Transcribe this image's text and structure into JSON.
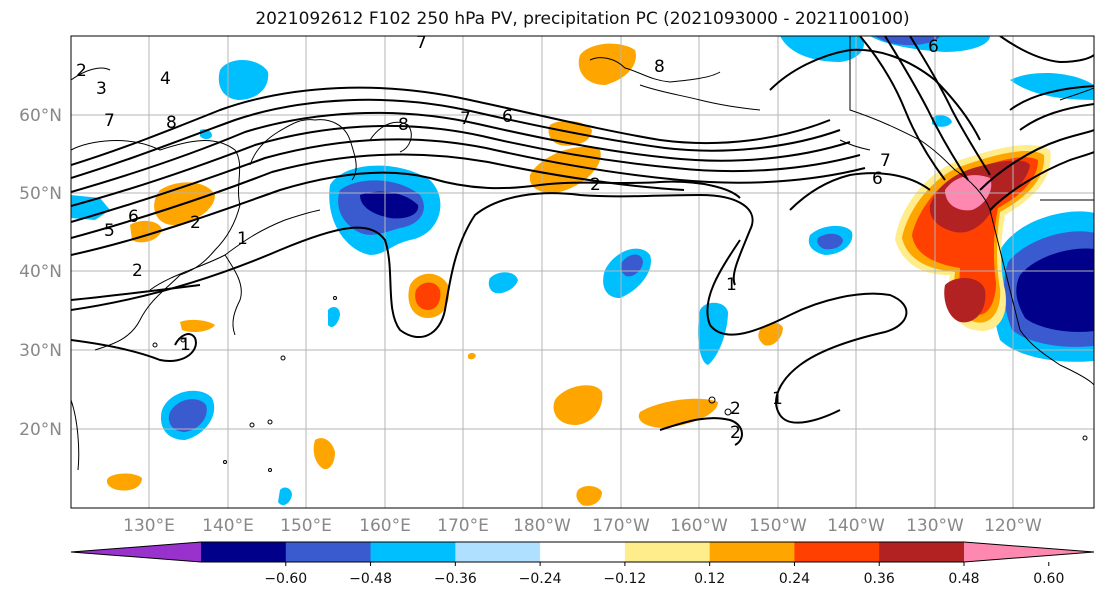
{
  "title": "2021092612 F102 250 hPa PV, precipitation PC (2021093000 - 2021100100)",
  "map": {
    "lat_ticks": [
      "60°N",
      "50°N",
      "40°N",
      "30°N",
      "20°N"
    ],
    "lon_ticks": [
      "130°E",
      "140°E",
      "150°E",
      "160°E",
      "170°E",
      "180°W",
      "170°W",
      "160°W",
      "150°W",
      "140°W",
      "130°W",
      "120°W"
    ]
  },
  "contour_labels": [
    "2",
    "3",
    "4",
    "7",
    "8",
    "6",
    "5",
    "2",
    "7",
    "8",
    "6",
    "2",
    "7",
    "6",
    "1",
    "1",
    "2",
    "2",
    "6",
    "7",
    "1",
    "1",
    "2",
    "8"
  ],
  "colorbar": {
    "tick_labels": [
      "−0.60",
      "−0.48",
      "−0.36",
      "−0.24",
      "−0.12",
      "0.12",
      "0.24",
      "0.36",
      "0.48",
      "0.60"
    ],
    "colors": [
      "#9932cc",
      "#00008b",
      "#3a5bd0",
      "#00bfff",
      "#b0e0ff",
      "#ffffff",
      "#ffec8b",
      "#ffa500",
      "#ff4000",
      "#b22222",
      "#ff88b0"
    ]
  }
}
